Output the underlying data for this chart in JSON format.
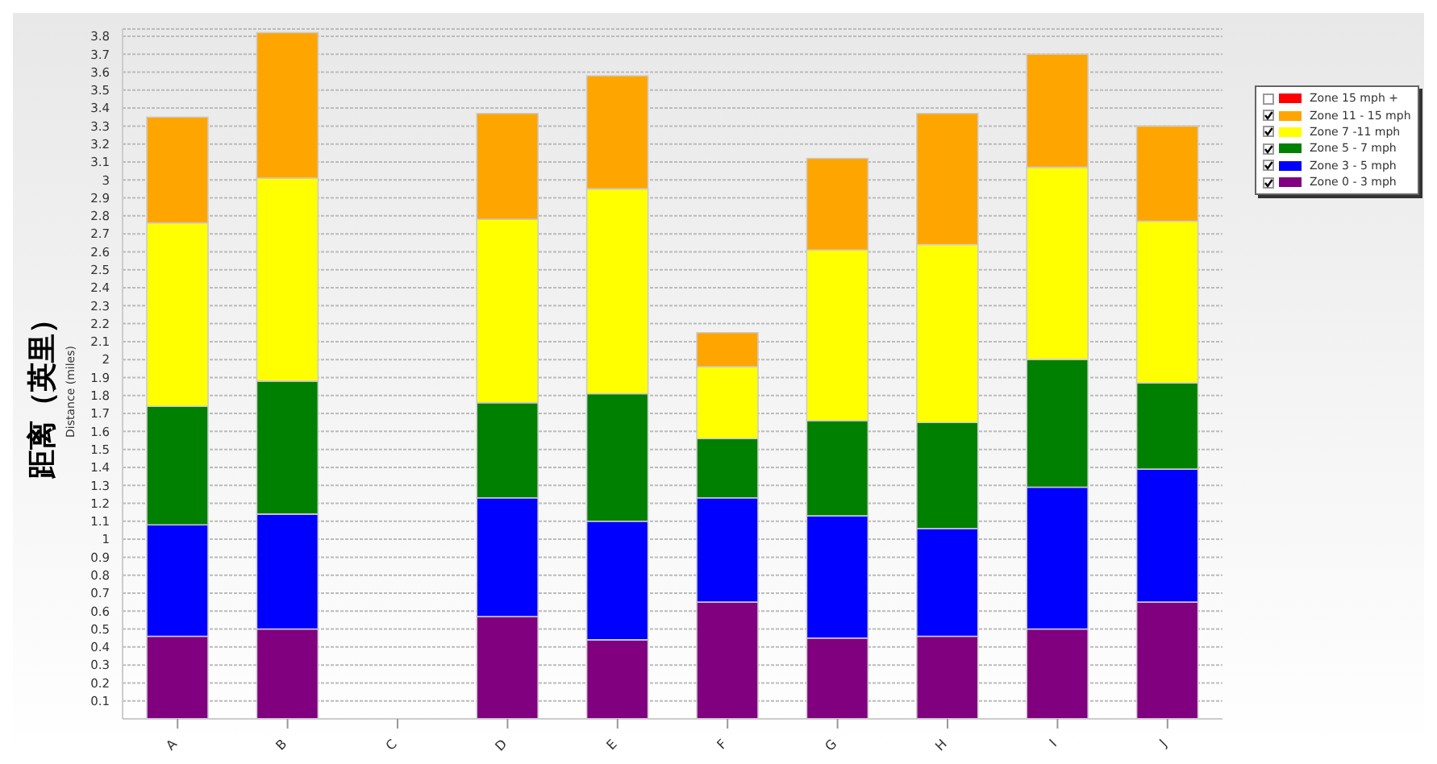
{
  "chart_data": {
    "type": "bar",
    "stacked": true,
    "ylabel": "距离（英里）",
    "annotations": [
      "Distance (miles)"
    ],
    "categories": [
      "A",
      "B",
      "C",
      "D",
      "E",
      "F",
      "G",
      "H",
      "I",
      "J"
    ],
    "series": [
      {
        "name": "Zone 0 - 3 mph",
        "color": "#800080",
        "values": [
          0.46,
          0.5,
          null,
          0.57,
          0.44,
          0.65,
          0.45,
          0.46,
          0.5,
          0.65
        ]
      },
      {
        "name": "Zone 3 - 5 mph",
        "color": "#0000ff",
        "values": [
          0.62,
          0.64,
          null,
          0.66,
          0.66,
          0.58,
          0.68,
          0.6,
          0.79,
          0.74
        ]
      },
      {
        "name": "Zone 5 - 7 mph",
        "color": "#008000",
        "values": [
          0.66,
          0.74,
          null,
          0.53,
          0.71,
          0.33,
          0.53,
          0.59,
          0.71,
          0.48
        ]
      },
      {
        "name": "Zone 7 -11 mph",
        "color": "#ffff00",
        "values": [
          1.02,
          1.13,
          null,
          1.02,
          1.14,
          0.4,
          0.95,
          0.99,
          1.07,
          0.9
        ]
      },
      {
        "name": "Zone 11 - 15 mph",
        "color": "#ffa500",
        "values": [
          0.59,
          0.81,
          null,
          0.59,
          0.63,
          0.19,
          0.51,
          0.73,
          0.63,
          0.53
        ]
      },
      {
        "name": "Zone 15 mph +",
        "color": "#ff0000",
        "values": [
          null,
          null,
          null,
          null,
          null,
          null,
          null,
          null,
          null,
          null
        ]
      }
    ],
    "ylim": [
      0,
      3.84
    ],
    "yticks": [
      0.1,
      0.2,
      0.3,
      0.4,
      0.5,
      0.6,
      0.7,
      0.8,
      0.9,
      1,
      1.1,
      1.2,
      1.3,
      1.4,
      1.5,
      1.6,
      1.7,
      1.8,
      1.9,
      2,
      2.1,
      2.2,
      2.3,
      2.4,
      2.5,
      2.6,
      2.7,
      2.8,
      2.9,
      3,
      3.1,
      3.2,
      3.3,
      3.4,
      3.5,
      3.6,
      3.7,
      3.8
    ],
    "grid": "y",
    "legend": "top right"
  }
}
